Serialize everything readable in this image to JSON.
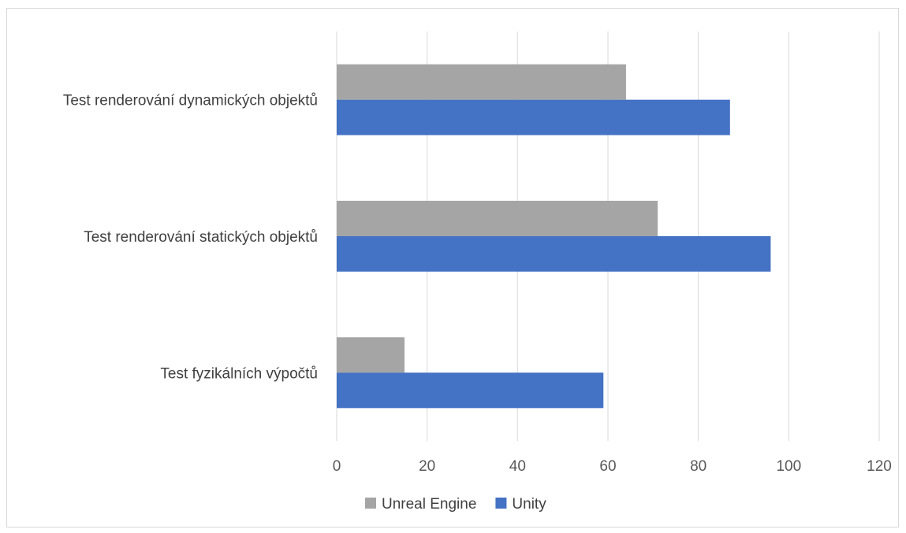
{
  "chart_data": {
    "type": "bar",
    "orientation": "horizontal",
    "categories": [
      "Test renderování dynamických objektů",
      "Test renderování statických objektů",
      "Test fyzikálních výpočtů"
    ],
    "series": [
      {
        "name": "Unreal Engine",
        "color": "#a5a5a5",
        "values": [
          64,
          71,
          15
        ]
      },
      {
        "name": "Unity",
        "color": "#4472c4",
        "values": [
          87,
          96,
          59
        ]
      }
    ],
    "xlim": [
      0,
      120
    ],
    "xticks": [
      "0",
      "20",
      "40",
      "60",
      "80",
      "100",
      "120"
    ],
    "grid": true,
    "legend_position": "bottom",
    "title": "",
    "xlabel": "",
    "ylabel": ""
  }
}
